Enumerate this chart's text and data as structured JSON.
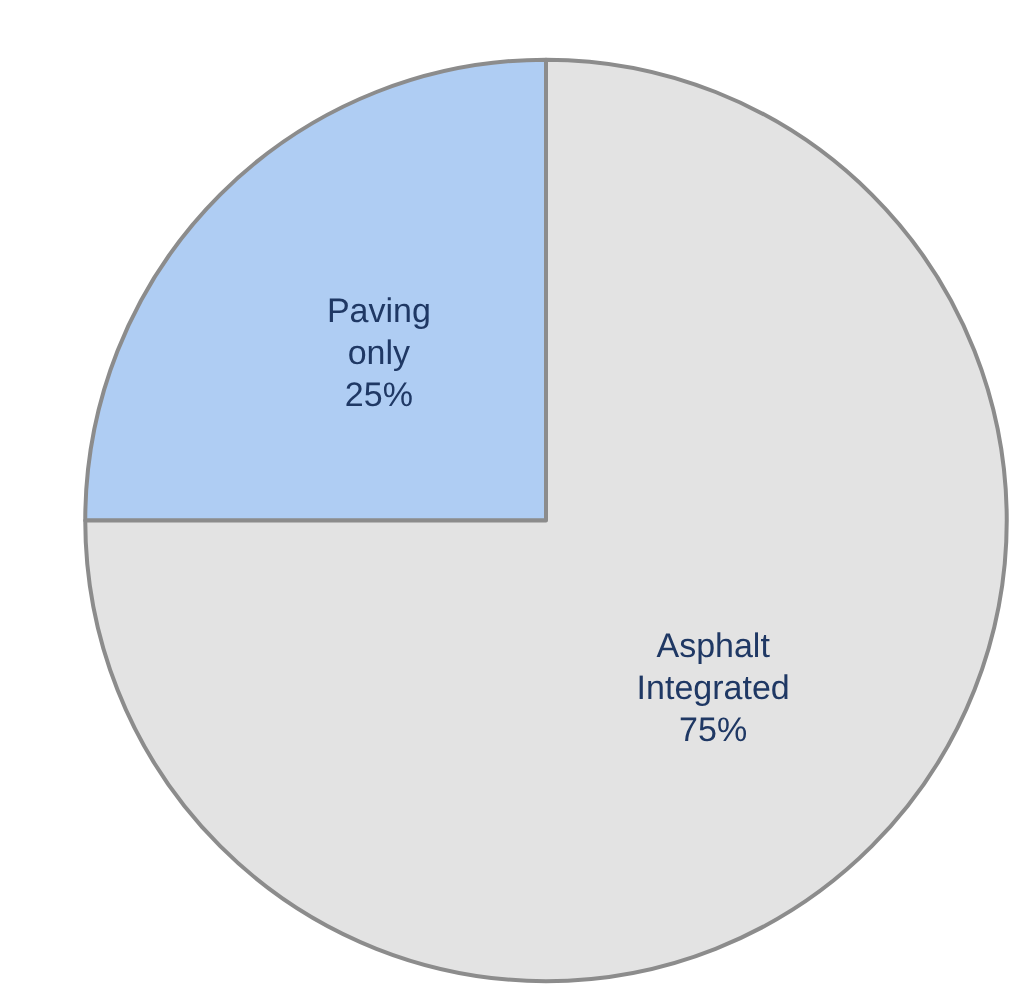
{
  "chart_data": {
    "type": "pie",
    "categories": [
      "Paving only",
      "Asphalt Integrated"
    ],
    "values": [
      25,
      75
    ],
    "colors": [
      "#afcdf3",
      "#e3e3e3"
    ],
    "value_labels": [
      "25%",
      "75%"
    ],
    "legend": false
  }
}
